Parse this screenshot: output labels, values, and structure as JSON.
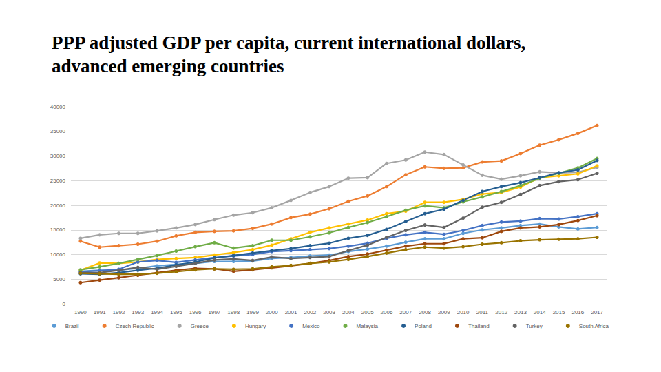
{
  "chart_data": {
    "type": "line",
    "title": "PPP adjusted GDP per capita, current international dollars, advanced emerging countries",
    "categories": [
      "1990",
      "1991",
      "1992",
      "1993",
      "1994",
      "1995",
      "1996",
      "1997",
      "1998",
      "1999",
      "2000",
      "2001",
      "2002",
      "2003",
      "2004",
      "2005",
      "2006",
      "2007",
      "2008",
      "2009",
      "2010",
      "2011",
      "2012",
      "2013",
      "2014",
      "2015",
      "2016",
      "2017"
    ],
    "series": [
      {
        "name": "Brazil",
        "color": "#5b9bd5",
        "values": [
          6600,
          6800,
          6800,
          7200,
          7700,
          8000,
          8200,
          8600,
          8600,
          8700,
          9200,
          9400,
          9700,
          9900,
          10600,
          11100,
          11700,
          12500,
          13200,
          13200,
          14300,
          15000,
          15400,
          15900,
          16200,
          15600,
          15200,
          15500
        ]
      },
      {
        "name": "Czech Republic",
        "color": "#ed7d31",
        "values": [
          12700,
          11500,
          11800,
          12100,
          12700,
          13800,
          14500,
          14700,
          14800,
          15300,
          16200,
          17500,
          18200,
          19300,
          20800,
          21900,
          23800,
          26200,
          27800,
          27500,
          27600,
          28800,
          29000,
          30500,
          32200,
          33300,
          34600,
          36200
        ]
      },
      {
        "name": "Greece",
        "color": "#a5a5a5",
        "values": [
          13300,
          14000,
          14300,
          14300,
          14800,
          15400,
          16100,
          17100,
          18000,
          18500,
          19500,
          21000,
          22600,
          23800,
          25500,
          25600,
          28500,
          29200,
          30800,
          30300,
          28200,
          26100,
          25300,
          26000,
          26800,
          26600,
          26700,
          27700
        ]
      },
      {
        "name": "Hungary",
        "color": "#ffc000",
        "values": [
          6800,
          8300,
          8200,
          8500,
          9000,
          9200,
          9400,
          9900,
          10400,
          11000,
          11900,
          13200,
          14500,
          15400,
          16200,
          17000,
          18300,
          18800,
          20600,
          20600,
          21200,
          22300,
          22600,
          23700,
          25600,
          26000,
          26400,
          28000
        ]
      },
      {
        "name": "Mexico",
        "color": "#4472c4",
        "values": [
          6500,
          6700,
          7000,
          8500,
          8800,
          8400,
          8900,
          9400,
          9700,
          10000,
          10600,
          10800,
          11000,
          11200,
          11700,
          12300,
          13300,
          14000,
          14500,
          14100,
          14900,
          15900,
          16600,
          16800,
          17300,
          17200,
          17700,
          18300
        ]
      },
      {
        "name": "Malaysia",
        "color": "#70ad47",
        "values": [
          6900,
          7500,
          8200,
          9000,
          9800,
          10700,
          11600,
          12400,
          11300,
          11800,
          12900,
          12900,
          13600,
          14400,
          15500,
          16500,
          17700,
          19000,
          19900,
          19500,
          20700,
          21700,
          22800,
          24000,
          25500,
          26500,
          27600,
          29500
        ]
      },
      {
        "name": "Poland",
        "color": "#255e91",
        "values": [
          6100,
          6000,
          6300,
          6800,
          7200,
          7900,
          8500,
          9300,
          9800,
          10300,
          10800,
          11200,
          11800,
          12300,
          13300,
          13900,
          15100,
          16700,
          18300,
          19200,
          21000,
          22800,
          23800,
          24600,
          25600,
          26600,
          27200,
          29100
        ]
      },
      {
        "name": "Thailand",
        "color": "#9e480e",
        "values": [
          4300,
          4800,
          5300,
          5800,
          6300,
          6800,
          7200,
          7100,
          6600,
          6900,
          7300,
          7700,
          8200,
          8800,
          9600,
          10100,
          10900,
          11700,
          12200,
          12200,
          13200,
          13400,
          14700,
          15400,
          15600,
          16100,
          16900,
          17900
        ]
      },
      {
        "name": "Turkey",
        "color": "#636363",
        "values": [
          6300,
          6300,
          6800,
          7400,
          7000,
          7600,
          8200,
          8900,
          9100,
          8800,
          9500,
          9200,
          9400,
          9600,
          10800,
          11900,
          13500,
          14900,
          16000,
          15500,
          17400,
          19600,
          20600,
          22200,
          24000,
          24800,
          25200,
          26500
        ]
      },
      {
        "name": "South Africa",
        "color": "#997300",
        "values": [
          6200,
          6100,
          6000,
          6000,
          6200,
          6500,
          6900,
          7100,
          7000,
          7100,
          7500,
          7800,
          8200,
          8500,
          9000,
          9600,
          10300,
          11000,
          11500,
          11300,
          11600,
          12100,
          12400,
          12800,
          13000,
          13100,
          13200,
          13500
        ]
      }
    ],
    "ylim": [
      0,
      40000
    ],
    "yticks": [
      0,
      5000,
      10000,
      15000,
      20000,
      25000,
      30000,
      35000,
      40000
    ],
    "grid": true,
    "legend": "bottom",
    "marker": "circle"
  }
}
